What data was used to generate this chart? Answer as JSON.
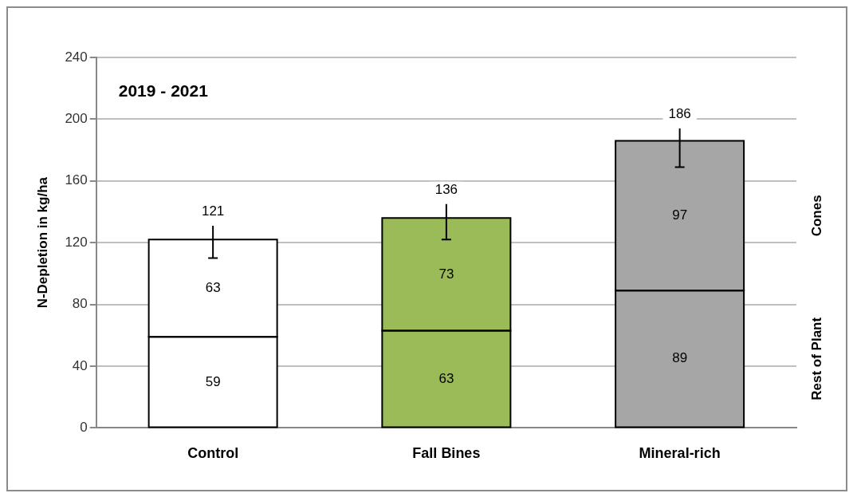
{
  "chart_data": {
    "type": "bar",
    "stacked": true,
    "ylabel": "N-Depletion in kg/ha",
    "categories": [
      "Control",
      "Fall Bines",
      "Mineral-rich"
    ],
    "series": [
      {
        "name": "Rest of Plant",
        "colors": [
          "#ffffff",
          "#9bbb59",
          "#a6a6a6"
        ],
        "values": [
          59,
          63,
          89
        ]
      },
      {
        "name": "Cones",
        "colors": [
          "#ffffff",
          "#9bbb59",
          "#a6a6a6"
        ],
        "values": [
          63,
          73,
          97
        ],
        "errors": [
          [
            110,
            131
          ],
          [
            122,
            145
          ],
          [
            169,
            194
          ]
        ]
      }
    ],
    "totals": [
      "121",
      "136",
      "186"
    ],
    "data_labels": true,
    "annotations": [
      "2019 - 2021"
    ],
    "ylim": [
      0,
      240
    ],
    "yticks": [
      0,
      40,
      80,
      120,
      160,
      200,
      240
    ],
    "grid": "y"
  }
}
